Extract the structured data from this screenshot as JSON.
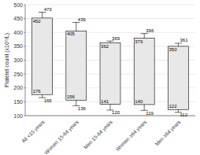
{
  "chart_data": {
    "type": "box",
    "categories": [
      "All <15 years",
      "Women 15-64 years",
      "Men 15-64 years",
      "Women ≥64 years",
      "Men ≥64 years"
    ],
    "box_low": [
      176,
      156,
      141,
      140,
      122
    ],
    "box_high": [
      452,
      405,
      362,
      379,
      350
    ],
    "whisker_low": [
      165,
      136,
      120,
      119,
      112
    ],
    "whisker_high": [
      473,
      436,
      369,
      396,
      361
    ],
    "color": "#e8e8e8",
    "ylabel": "Platelet count (x10⁹/L)",
    "ylim": [
      100,
      500
    ],
    "yticks": [
      100,
      150,
      200,
      250,
      300,
      350,
      400,
      450,
      500
    ],
    "grid": true,
    "data_labels": true
  }
}
